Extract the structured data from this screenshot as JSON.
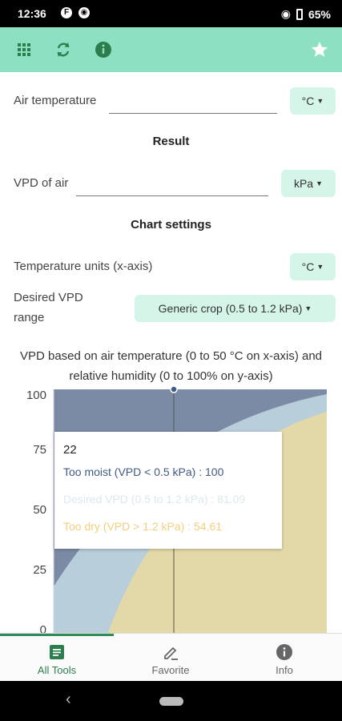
{
  "status_bar": {
    "time": "12:36",
    "icon1": "F",
    "battery": "65%"
  },
  "toolbar": {
    "icons": [
      "apps-grid-icon",
      "refresh-icon",
      "info-icon",
      "star-icon"
    ]
  },
  "form": {
    "air_temperature": {
      "label": "Air temperature",
      "value": "",
      "unit": "°C"
    },
    "result_heading": "Result",
    "vpd": {
      "label": "VPD of air",
      "value": "",
      "unit": "kPa"
    },
    "chart_settings_heading": "Chart settings",
    "temp_units": {
      "label": "Temperature units (x-axis)",
      "unit": "°C"
    },
    "vpd_range": {
      "label_line1": "Desired VPD",
      "label_line2": "range",
      "value": "Generic crop (0.5 to 1.2 kPa)"
    }
  },
  "chart": {
    "title_line1": "VPD based on air temperature (0 to 50 °C on x-axis) and",
    "title_line2": "relative humidity (0 to 100% on y-axis)"
  },
  "chart_data": {
    "type": "area",
    "title": "VPD based on air temperature (0 to 50 °C on x-axis) and relative humidity (0 to 100% on y-axis)",
    "xlim": [
      0,
      50
    ],
    "ylim": [
      0,
      100
    ],
    "yticks": [
      "100",
      "75",
      "50",
      "25",
      "0"
    ],
    "series": [
      {
        "name": "Too moist (VPD < 0.5 kPa)",
        "color": "#7b8ba5"
      },
      {
        "name": "Desired VPD (0.5 to 1.2 kPa)",
        "color": "#b9cedb"
      },
      {
        "name": "Too dry (VPD > 1.2 kPa)",
        "color": "#e3d9a8"
      }
    ],
    "tooltip": {
      "x": "22",
      "rows": [
        {
          "label": "Too moist (VPD < 0.5 kPa) : 100",
          "color": "#3f5c82"
        },
        {
          "label": "Desired VPD (0.5 to 1.2 kPa) : 81.09",
          "color": "#dbe8ee"
        },
        {
          "label": "Too dry (VPD > 1.2 kPa) : 54.61",
          "color": "#f2cf7c"
        }
      ]
    }
  },
  "bottom_nav": {
    "items": [
      {
        "label": "All Tools",
        "active": true
      },
      {
        "label": "Favorite",
        "active": false
      },
      {
        "label": "Info",
        "active": false
      }
    ]
  }
}
